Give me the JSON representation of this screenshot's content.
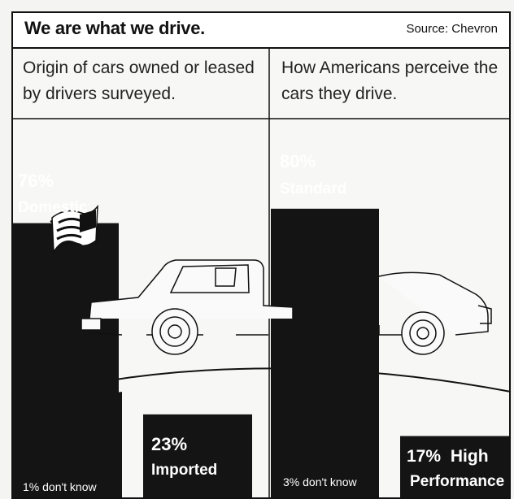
{
  "header": {
    "title": "We are what we drive.",
    "source": "Source: Chevron"
  },
  "panels": {
    "left_subtitle": "Origin of cars owned or leased by drivers surveyed.",
    "right_subtitle": "How Americans perceive the cars they drive."
  },
  "chart_data": [
    {
      "type": "bar",
      "title": "Origin of cars owned or leased by drivers surveyed.",
      "categories": [
        "Domestic",
        "Imported"
      ],
      "values": [
        76,
        23
      ],
      "value_labels": [
        "76%",
        "23%"
      ],
      "note": "1% don't know",
      "ylim": [
        0,
        100
      ]
    },
    {
      "type": "bar",
      "title": "How Americans perceive the cars they drive.",
      "categories": [
        "Standard",
        "High Performance"
      ],
      "values": [
        80,
        17
      ],
      "value_labels": [
        "80%",
        "17%"
      ],
      "note": "3% don't know",
      "ylim": [
        0,
        100
      ]
    }
  ],
  "colors": {
    "bar": "#141414",
    "background": "#f7f7f5",
    "text_on_bar": "#ffffff"
  },
  "icons": [
    "american-flag-icon",
    "pickup-truck-icon",
    "sedan-car-icon"
  ]
}
